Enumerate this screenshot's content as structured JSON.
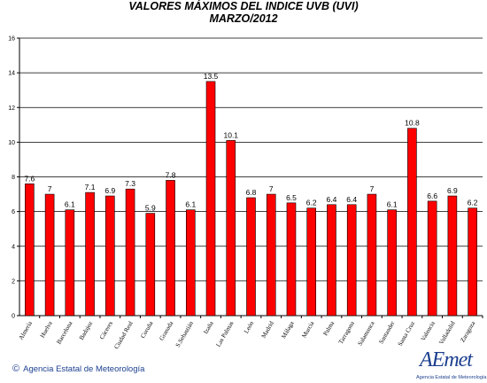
{
  "header": {
    "line1": "VALORES MÁXIMOS DEL INDICE UVB (UVI)",
    "line2": "MARZO/2012"
  },
  "footer": {
    "copyright_symbol": "©",
    "agency": "Agencia Estatal de Meteorología",
    "logo_text": "AEmet",
    "logo_subtext": "Agencia Estatal de Meteorología"
  },
  "colors": {
    "bar": "#ff0000",
    "bar_edge": "#000000",
    "grid": "#000000",
    "brand": "#1c3f8f"
  },
  "chart_data": {
    "type": "bar",
    "title": "VALORES MÁXIMOS DEL INDICE UVB (UVI)",
    "subtitle": "MARZO/2012",
    "xlabel": "",
    "ylabel": "",
    "ylim": [
      0,
      16
    ],
    "yticks": [
      0,
      2,
      4,
      6,
      8,
      10,
      12,
      14,
      16
    ],
    "grid": true,
    "legend": "none",
    "categories": [
      "Almería",
      "Huelva",
      "Barcelona",
      "Badajoz",
      "Cáceres",
      "Ciudad Real",
      "Coruña",
      "Granada",
      "S.Sebastián",
      "Izaña",
      "Las Palmas",
      "León",
      "Madrid",
      "Málaga",
      "Murcia",
      "Palma",
      "Tarragona",
      "Salamanca",
      "Santander",
      "Santa Cruz",
      "Valencia",
      "Valladolid",
      "Zaragoza"
    ],
    "values": [
      7.6,
      7,
      6.1,
      7.1,
      6.9,
      7.3,
      5.9,
      7.8,
      6.1,
      13.5,
      10.1,
      6.8,
      7,
      6.5,
      6.2,
      6.4,
      6.4,
      7,
      6.1,
      10.8,
      6.6,
      6.9,
      6.2
    ],
    "value_labels": [
      "7.6",
      "7",
      "6.1",
      "7.1",
      "6.9",
      "7.3",
      "5.9",
      "7.8",
      "6.1",
      "13.5",
      "10.1",
      "6.8",
      "7",
      "6.5",
      "6.2",
      "6.4",
      "6.4",
      "7",
      "6.1",
      "10.8",
      "6.6",
      "6.9",
      "6.2"
    ]
  }
}
